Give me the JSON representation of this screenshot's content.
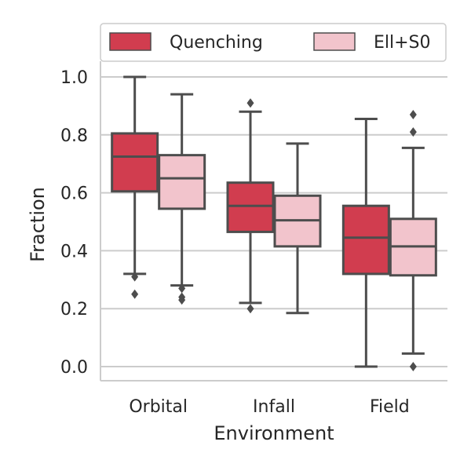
{
  "chart_data": {
    "type": "box",
    "xlabel": "Environment",
    "ylabel": "Fraction",
    "ylim": [
      -0.05,
      1.07
    ],
    "yticks": [
      0.0,
      0.2,
      0.4,
      0.6,
      0.8,
      1.0
    ],
    "ytick_labels": [
      "0.0",
      "0.2",
      "0.4",
      "0.6",
      "0.8",
      "1.0"
    ],
    "categories": [
      "Orbital",
      "Infall",
      "Field"
    ],
    "grid": "horizontal",
    "legend_position": "top",
    "series": [
      {
        "name": "Quenching",
        "color": "#d13d4f",
        "boxes": [
          {
            "whisker_low": 0.32,
            "q1": 0.605,
            "median": 0.725,
            "q3": 0.805,
            "whisker_high": 1.0,
            "outliers": [
              0.31,
              0.25
            ]
          },
          {
            "whisker_low": 0.22,
            "q1": 0.465,
            "median": 0.555,
            "q3": 0.635,
            "whisker_high": 0.88,
            "outliers": [
              0.91,
              0.2
            ]
          },
          {
            "whisker_low": 0.0,
            "q1": 0.32,
            "median": 0.445,
            "q3": 0.555,
            "whisker_high": 0.855,
            "outliers": []
          }
        ]
      },
      {
        "name": "Ell+S0",
        "color": "#f2c4cc",
        "boxes": [
          {
            "whisker_low": 0.28,
            "q1": 0.545,
            "median": 0.65,
            "q3": 0.73,
            "whisker_high": 0.94,
            "outliers": [
              0.27,
              0.24,
              0.23
            ]
          },
          {
            "whisker_low": 0.185,
            "q1": 0.415,
            "median": 0.505,
            "q3": 0.59,
            "whisker_high": 0.77,
            "outliers": []
          },
          {
            "whisker_low": 0.045,
            "q1": 0.315,
            "median": 0.415,
            "q3": 0.51,
            "whisker_high": 0.755,
            "outliers": [
              0.87,
              0.81,
              0.0
            ]
          }
        ]
      }
    ]
  }
}
